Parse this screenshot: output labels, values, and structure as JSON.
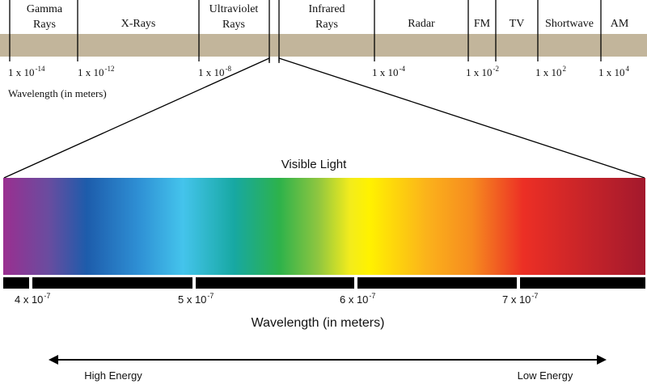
{
  "spectrum": {
    "bands": [
      {
        "lines": [
          "Gamma",
          "Rays"
        ]
      },
      {
        "lines": [
          "X-Rays"
        ]
      },
      {
        "lines": [
          "Ultraviolet",
          "Rays"
        ]
      },
      {
        "lines": [
          "Infrared",
          "Rays"
        ]
      },
      {
        "lines": [
          "Radar"
        ]
      },
      {
        "lines": [
          "FM"
        ]
      },
      {
        "lines": [
          "TV"
        ]
      },
      {
        "lines": [
          "Shortwave"
        ]
      },
      {
        "lines": [
          "AM"
        ]
      }
    ],
    "ticks": [
      {
        "base": "1 x 10",
        "exp": "-14"
      },
      {
        "base": "1 x 10",
        "exp": "-12"
      },
      {
        "base": "1 x 10",
        "exp": "-8"
      },
      {
        "base": "1 x 10",
        "exp": "-4"
      },
      {
        "base": "1 x 10",
        "exp": "-2"
      },
      {
        "base": "1 x 10",
        "exp": "2"
      },
      {
        "base": "1 x 10",
        "exp": "4"
      }
    ],
    "axis_label": "Wavelength (in meters)"
  },
  "visible": {
    "title": "Visible Light",
    "ticks": [
      {
        "base": "4 x 10",
        "exp": "-7"
      },
      {
        "base": "5 x 10",
        "exp": "-7"
      },
      {
        "base": "6 x 10",
        "exp": "-7"
      },
      {
        "base": "7 x 10",
        "exp": "-7"
      }
    ],
    "axis_label": "Wavelength (in meters)",
    "left_label": "High Energy",
    "right_label": "Low Energy"
  }
}
